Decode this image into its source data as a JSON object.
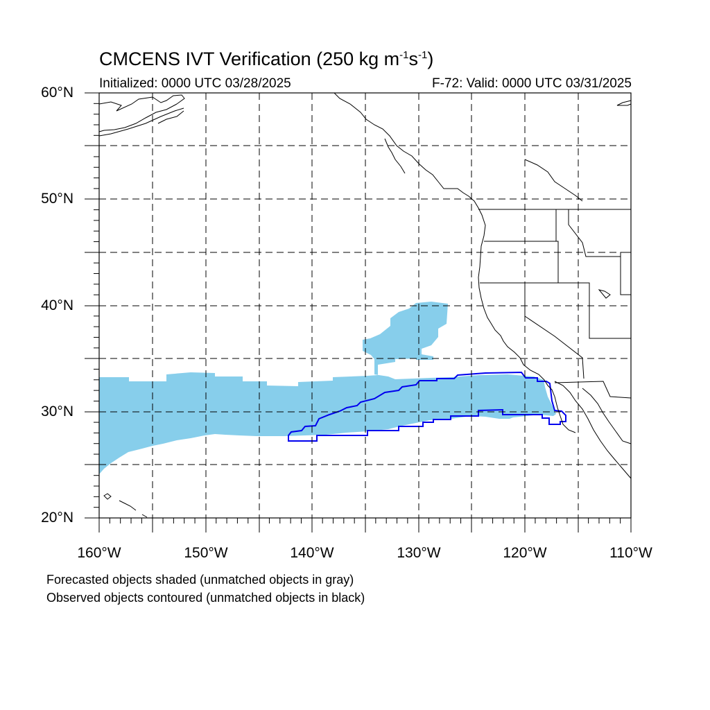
{
  "header": {
    "title_main": "CMCENS IVT Verification (250 kg m",
    "title_exp1": "-1",
    "title_mid": "s",
    "title_exp2": "-1",
    "title_end": ")",
    "initialized": "Initialized: 0000 UTC 03/28/2025",
    "valid": "F-72: Valid: 0000 UTC 03/31/2025"
  },
  "axes": {
    "lat_labels": [
      "60°N",
      "50°N",
      "40°N",
      "30°N",
      "20°N"
    ],
    "lon_labels": [
      "160°W",
      "150°W",
      "140°W",
      "130°W",
      "120°W",
      "110°W"
    ]
  },
  "legend": {
    "forecast_note": "Forecasted objects shaded (unmatched objects in gray)",
    "observed_note": "Observed objects contoured (unmatched objects in black)"
  },
  "colors": {
    "forecast_fill": "#87ceeb",
    "observed_contour": "#0000ee",
    "coastline": "#000000",
    "grid": "#000000"
  },
  "map_extent": {
    "lon_min": -160,
    "lon_max": -110,
    "lat_min": 20,
    "lat_max": 60
  }
}
